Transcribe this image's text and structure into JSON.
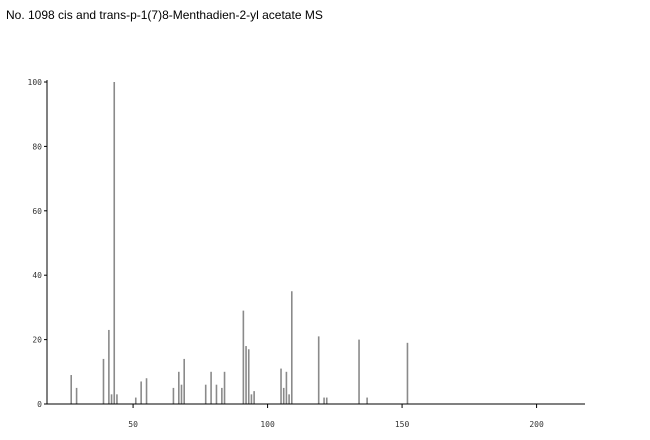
{
  "chart_data": {
    "type": "bar",
    "title": "No. 1098 cis and trans-p-1(7)8-Menthadien-2-yl acetate MS",
    "xlabel": "",
    "ylabel": "",
    "xlim": [
      18,
      218
    ],
    "ylim": [
      0,
      100
    ],
    "x_ticks": [
      50,
      100,
      150,
      200
    ],
    "y_ticks": [
      0,
      20,
      40,
      60,
      80,
      100
    ],
    "grid": false,
    "legend": "none",
    "colors": {
      "peak": "#8a8a8a",
      "axis": "#000000"
    },
    "peaks": [
      {
        "x": 27,
        "y": 9
      },
      {
        "x": 29,
        "y": 5
      },
      {
        "x": 39,
        "y": 14
      },
      {
        "x": 41,
        "y": 23
      },
      {
        "x": 42,
        "y": 3
      },
      {
        "x": 43,
        "y": 100
      },
      {
        "x": 44,
        "y": 3
      },
      {
        "x": 51,
        "y": 2
      },
      {
        "x": 53,
        "y": 7
      },
      {
        "x": 55,
        "y": 8
      },
      {
        "x": 65,
        "y": 5
      },
      {
        "x": 67,
        "y": 10
      },
      {
        "x": 68,
        "y": 6
      },
      {
        "x": 69,
        "y": 14
      },
      {
        "x": 77,
        "y": 6
      },
      {
        "x": 79,
        "y": 10
      },
      {
        "x": 81,
        "y": 6
      },
      {
        "x": 83,
        "y": 5
      },
      {
        "x": 84,
        "y": 10
      },
      {
        "x": 91,
        "y": 29
      },
      {
        "x": 92,
        "y": 18
      },
      {
        "x": 93,
        "y": 17
      },
      {
        "x": 94,
        "y": 3
      },
      {
        "x": 95,
        "y": 4
      },
      {
        "x": 105,
        "y": 11
      },
      {
        "x": 106,
        "y": 5
      },
      {
        "x": 107,
        "y": 10
      },
      {
        "x": 108,
        "y": 3
      },
      {
        "x": 109,
        "y": 35
      },
      {
        "x": 119,
        "y": 21
      },
      {
        "x": 121,
        "y": 2
      },
      {
        "x": 122,
        "y": 2
      },
      {
        "x": 134,
        "y": 20
      },
      {
        "x": 137,
        "y": 2
      },
      {
        "x": 152,
        "y": 19
      }
    ]
  }
}
